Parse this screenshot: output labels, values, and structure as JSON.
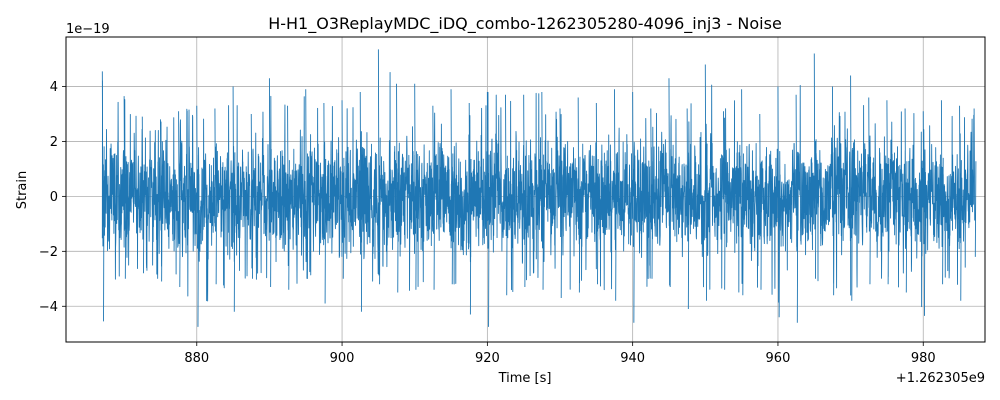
{
  "chart_data": {
    "type": "line",
    "title": "H-H1_O3ReplayMDC_iDQ_combo-1262305280-4096_inj3 - Noise",
    "xlabel": "Time [s]",
    "ylabel": "Strain",
    "x_offset_label": "+1.262305e9",
    "y_scale_label": "1e−19",
    "xlim": [
      862.0,
      988.5
    ],
    "ylim": [
      -5.3,
      5.8
    ],
    "x_ticks": [
      880,
      900,
      920,
      940,
      960,
      980
    ],
    "x_tick_labels": [
      "880",
      "900",
      "920",
      "940",
      "960",
      "980"
    ],
    "y_ticks": [
      -4,
      -2,
      0,
      2,
      4
    ],
    "y_tick_labels": [
      "−4",
      "−2",
      "0",
      "2",
      "4"
    ],
    "grid": true,
    "legend": false,
    "series": [
      {
        "color": "#1f77b4",
        "x_start": 867.0,
        "x_end": 987.0,
        "sigma": 1.0,
        "max": 5.35,
        "min": -4.75,
        "envelope_x": [
          867.0,
          870.0,
          872.5,
          875.0,
          877.5,
          880.0,
          882.5,
          885.0,
          887.5,
          890.0,
          892.5,
          895.0,
          897.5,
          900.0,
          902.5,
          905.0,
          907.5,
          910.0,
          912.5,
          915.0,
          917.5,
          920.0,
          922.5,
          925.0,
          927.5,
          930.0,
          932.5,
          935.0,
          937.5,
          940.0,
          942.5,
          945.0,
          947.5,
          950.0,
          952.5,
          955.0,
          957.5,
          960.0,
          962.5,
          965.0,
          967.5,
          970.0,
          972.5,
          975.0,
          977.5,
          980.0,
          982.5,
          985.0,
          987.0
        ],
        "envelope_max": [
          4.55,
          3.65,
          2.9,
          2.8,
          3.1,
          3.3,
          3.2,
          4.0,
          3.0,
          4.3,
          3.3,
          3.9,
          3.4,
          3.5,
          3.8,
          5.35,
          4.1,
          4.1,
          3.3,
          3.9,
          3.4,
          3.8,
          3.7,
          3.7,
          3.8,
          3.2,
          3.6,
          3.4,
          3.9,
          3.8,
          3.2,
          4.3,
          3.2,
          4.8,
          3.1,
          3.9,
          3.0,
          4.0,
          3.7,
          5.2,
          4.0,
          4.4,
          3.6,
          3.5,
          3.2,
          3.1,
          3.5,
          3.3,
          3.2
        ],
        "envelope_min": [
          -4.55,
          -3.0,
          -2.8,
          -3.1,
          -3.3,
          -4.75,
          -3.2,
          -4.2,
          -3.0,
          -3.3,
          -3.4,
          -3.0,
          -3.9,
          -3.0,
          -4.2,
          -3.2,
          -3.5,
          -3.4,
          -3.4,
          -3.2,
          -4.3,
          -4.75,
          -3.6,
          -3.3,
          -3.4,
          -3.7,
          -3.5,
          -3.2,
          -3.8,
          -4.6,
          -3.0,
          -3.3,
          -4.1,
          -3.8,
          -3.4,
          -3.6,
          -3.4,
          -4.4,
          -4.6,
          -3.0,
          -3.6,
          -3.8,
          -3.2,
          -3.2,
          -3.5,
          -4.35,
          -3.2,
          -3.8,
          -2.2
        ]
      }
    ]
  }
}
